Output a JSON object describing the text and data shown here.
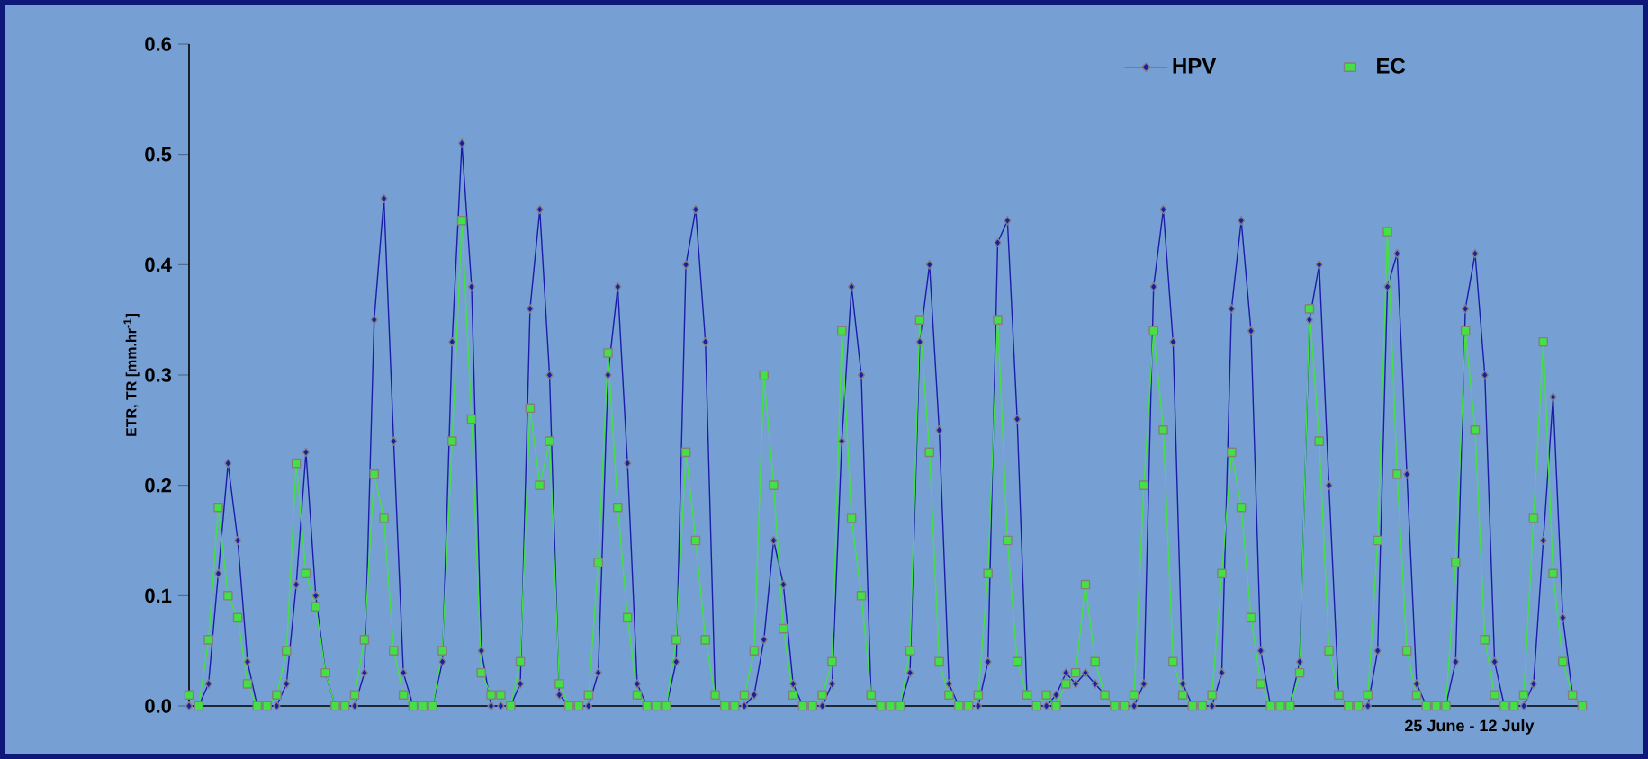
{
  "chart_data": {
    "type": "line",
    "xlabel": "25 June - 12 July",
    "ylabel": "ETR, TR  [mm.hr$^{-1}$]",
    "categories": [
      null,
      null,
      null,
      null,
      null,
      null,
      null,
      null,
      null,
      null,
      null,
      null,
      null,
      null,
      null,
      null,
      null,
      null,
      null,
      null,
      null,
      null,
      null,
      null,
      null,
      null,
      null,
      null,
      null,
      null,
      null,
      null,
      null,
      null,
      null,
      null,
      null,
      null,
      null,
      null,
      null,
      null,
      null,
      null,
      null,
      null,
      null,
      null,
      null,
      null,
      null,
      null,
      null,
      null,
      null,
      null,
      null,
      null,
      null,
      null,
      null,
      null,
      null,
      null,
      null,
      null,
      null,
      null,
      null,
      null,
      null,
      null,
      null,
      null,
      null,
      null,
      null,
      null,
      null,
      null,
      null,
      null,
      null,
      null,
      null,
      null,
      null,
      null,
      null,
      null,
      null,
      null,
      null,
      null,
      null,
      null,
      null,
      null,
      null,
      null,
      null,
      null,
      null,
      null,
      null,
      null,
      null,
      null,
      null,
      null,
      null,
      null,
      null,
      null,
      null,
      null,
      null,
      null,
      null,
      null,
      null,
      null,
      null,
      null,
      null,
      null,
      null,
      null,
      null,
      null,
      null,
      null,
      null,
      null,
      null,
      null,
      null,
      null,
      null,
      null,
      null,
      null,
      null,
      null
    ],
    "series": [
      {
        "name": "HPV",
        "color": "#1c1ca8",
        "marker": "diamond",
        "values": [
          0,
          0,
          0.02,
          0.12,
          0.22,
          0.15,
          0.04,
          0,
          0,
          0,
          0.02,
          0.11,
          0.23,
          0.1,
          0.03,
          0,
          0,
          0,
          0.03,
          0.35,
          0.46,
          0.24,
          0.03,
          0,
          0,
          0,
          0.04,
          0.33,
          0.51,
          0.38,
          0.05,
          0,
          0,
          0,
          0.02,
          0.36,
          0.45,
          0.3,
          0.01,
          0,
          0,
          0,
          0.03,
          0.3,
          0.38,
          0.22,
          0.02,
          0,
          0,
          0,
          0.04,
          0.4,
          0.45,
          0.33,
          0.01,
          0,
          0,
          0,
          0.01,
          0.06,
          0.15,
          0.11,
          0.02,
          0,
          0,
          0,
          0.02,
          0.24,
          0.38,
          0.3,
          0.01,
          0,
          0,
          0,
          0.03,
          0.33,
          0.4,
          0.25,
          0.02,
          0,
          0,
          0,
          0.04,
          0.42,
          0.44,
          0.26,
          0.01,
          0,
          0,
          0.01,
          0.03,
          0.02,
          0.03,
          0.02,
          0.01,
          0,
          0,
          0,
          0.02,
          0.38,
          0.45,
          0.33,
          0.02,
          0,
          0,
          0,
          0.03,
          0.36,
          0.44,
          0.34,
          0.05,
          0,
          0,
          0,
          0.04,
          0.35,
          0.4,
          0.2,
          0.01,
          0,
          0,
          0,
          0.05,
          0.38,
          0.41,
          0.21,
          0.02,
          0,
          0,
          0,
          0.04,
          0.36,
          0.41,
          0.3,
          0.04,
          0,
          0,
          0,
          0.02,
          0.15,
          0.28,
          0.08,
          0.01,
          0
        ]
      },
      {
        "name": "EC",
        "color": "#44e044",
        "marker": "square",
        "values": [
          0.01,
          0,
          0.06,
          0.18,
          0.1,
          0.08,
          0.02,
          0,
          0,
          0.01,
          0.05,
          0.22,
          0.12,
          0.09,
          0.03,
          0,
          0,
          0.01,
          0.06,
          0.21,
          0.17,
          0.05,
          0.01,
          0,
          0,
          0,
          0.05,
          0.24,
          0.44,
          0.26,
          0.03,
          0.01,
          0.01,
          0,
          0.04,
          0.27,
          0.2,
          0.24,
          0.02,
          0,
          0,
          0.01,
          0.13,
          0.32,
          0.18,
          0.08,
          0.01,
          0,
          0,
          0,
          0.06,
          0.23,
          0.15,
          0.06,
          0.01,
          0,
          0,
          0.01,
          0.05,
          0.3,
          0.2,
          0.07,
          0.01,
          0,
          0,
          0.01,
          0.04,
          0.34,
          0.17,
          0.1,
          0.01,
          0,
          0,
          0,
          0.05,
          0.35,
          0.23,
          0.04,
          0.01,
          0,
          0,
          0.01,
          0.12,
          0.35,
          0.15,
          0.04,
          0.01,
          0,
          0.01,
          0,
          0.02,
          0.03,
          0.11,
          0.04,
          0.01,
          0,
          0,
          0.01,
          0.2,
          0.34,
          0.25,
          0.04,
          0.01,
          0,
          0,
          0.01,
          0.12,
          0.23,
          0.18,
          0.08,
          0.02,
          0,
          0,
          0,
          0.03,
          0.36,
          0.24,
          0.05,
          0.01,
          0,
          0,
          0.01,
          0.15,
          0.43,
          0.21,
          0.05,
          0.01,
          0,
          0,
          0,
          0.13,
          0.34,
          0.25,
          0.06,
          0.01,
          0,
          0,
          0.01,
          0.17,
          0.33,
          0.12,
          0.04,
          0.01,
          0
        ]
      }
    ],
    "ylim": [
      0,
      0.6
    ],
    "yticks": [
      {
        "value": 0,
        "label": "0.0"
      },
      {
        "value": 0.1,
        "label": "0.1"
      },
      {
        "value": 0.2,
        "label": "0.2"
      },
      {
        "value": 0.3,
        "label": "0.3"
      },
      {
        "value": 0.4,
        "label": "0.4"
      },
      {
        "value": 0.5,
        "label": "0.5"
      },
      {
        "value": 0.6,
        "label": "0.6"
      }
    ],
    "grid": false,
    "legend": "top right",
    "line_style": "solid"
  }
}
